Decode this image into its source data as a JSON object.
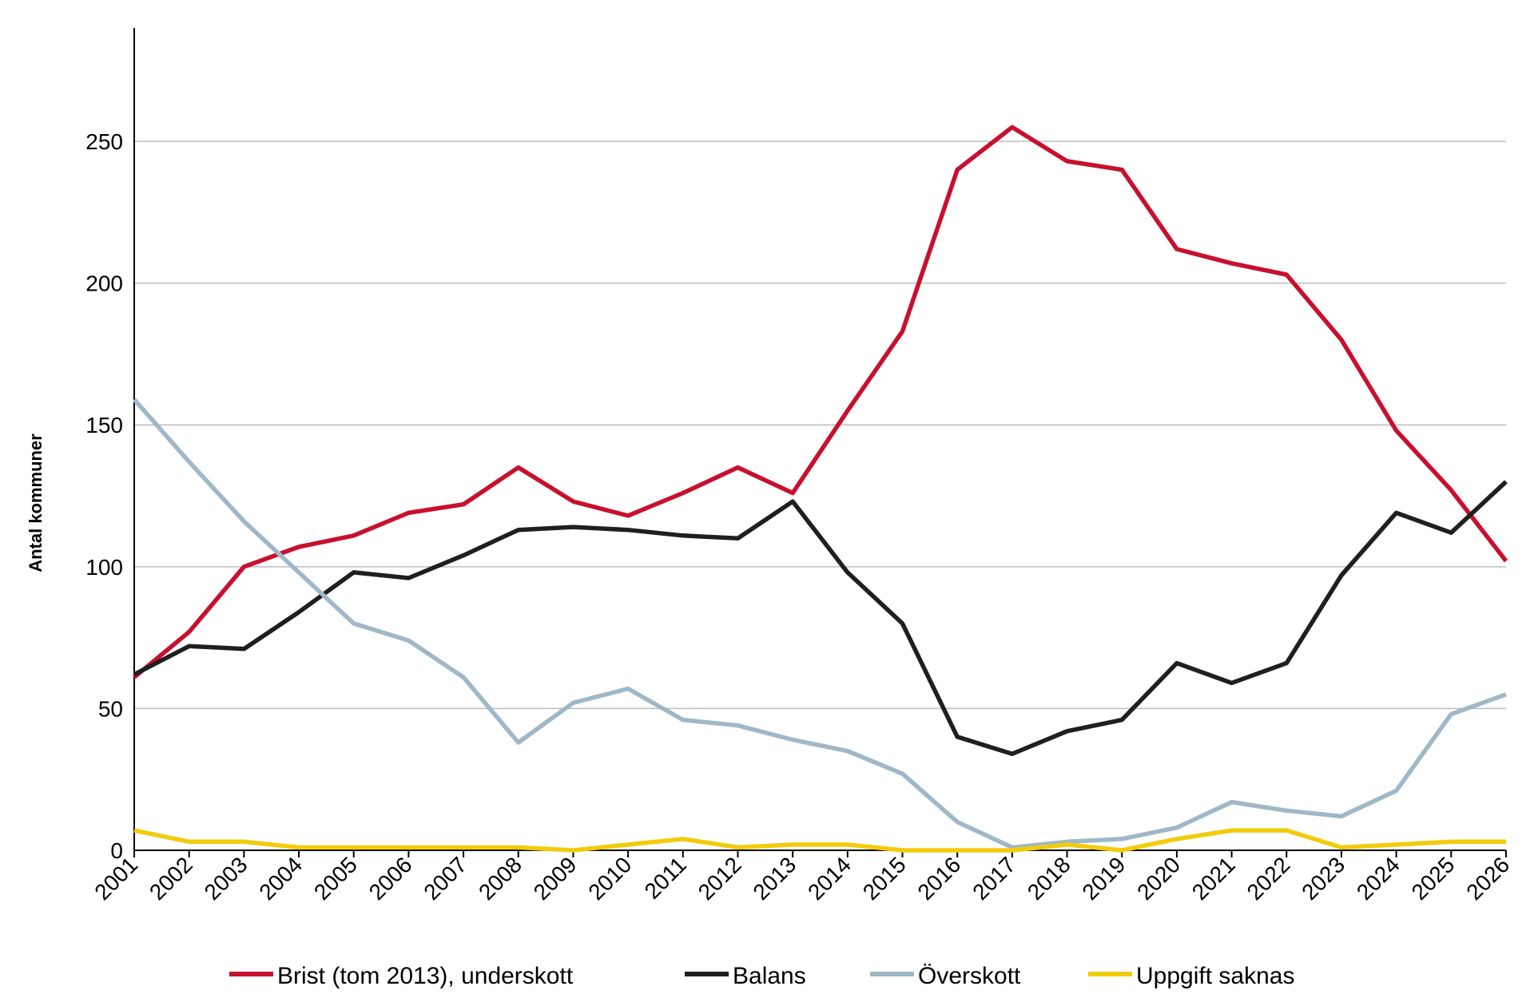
{
  "chart_data": {
    "type": "line",
    "ylabel": "Antal kommuner",
    "ylim": [
      0,
      290
    ],
    "yticks": [
      0,
      50,
      100,
      150,
      200,
      250
    ],
    "grid": "horizontal",
    "legend_position": "bottom",
    "categories": [
      "2001",
      "2002",
      "2003",
      "2004",
      "2005",
      "2006",
      "2007",
      "2008",
      "2009",
      "2010",
      "2011",
      "2012",
      "2013",
      "2014",
      "2015",
      "2016",
      "2017",
      "2018",
      "2019",
      "2020",
      "2021",
      "2022",
      "2023",
      "2024",
      "2025",
      "2026"
    ],
    "series": [
      {
        "name": "Brist (tom 2013), underskott",
        "color": "#c8102e",
        "values": [
          61,
          77,
          100,
          107,
          111,
          119,
          122,
          135,
          123,
          118,
          126,
          135,
          126,
          155,
          183,
          240,
          255,
          243,
          240,
          212,
          207,
          203,
          180,
          148,
          127,
          102
        ]
      },
      {
        "name": "Balans",
        "color": "#1f1f1f",
        "values": [
          62,
          72,
          71,
          84,
          98,
          96,
          104,
          113,
          114,
          113,
          111,
          110,
          123,
          98,
          80,
          40,
          34,
          42,
          46,
          66,
          59,
          66,
          97,
          119,
          112,
          130
        ]
      },
      {
        "name": "Överskott",
        "color": "#9fb8c8",
        "values": [
          159,
          137,
          116,
          98,
          80,
          74,
          61,
          38,
          52,
          57,
          46,
          44,
          39,
          35,
          27,
          10,
          1,
          3,
          4,
          8,
          17,
          14,
          12,
          21,
          48,
          55
        ]
      },
      {
        "name": "Uppgift saknas",
        "color": "#f2cc0c",
        "values": [
          7,
          3,
          3,
          1,
          1,
          1,
          1,
          1,
          0,
          2,
          4,
          1,
          2,
          2,
          0,
          0,
          0,
          2,
          0,
          4,
          7,
          7,
          1,
          2,
          3,
          3
        ]
      }
    ]
  }
}
